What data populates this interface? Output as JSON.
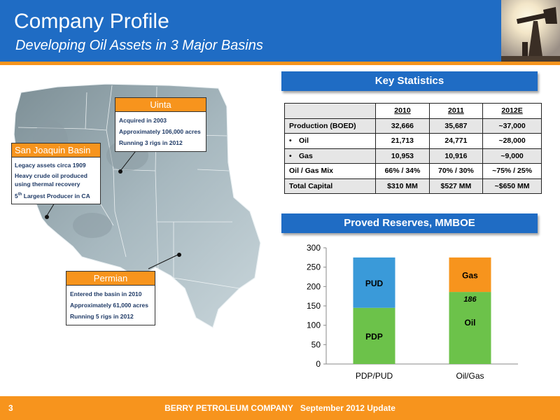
{
  "header": {
    "title": "Company Profile",
    "subtitle": "Developing Oil Assets in 3 Major Basins"
  },
  "callouts": {
    "uinta": {
      "name": "Uinta",
      "lines": [
        "Acquired in 2003",
        "Approximately 106,000 acres",
        "Running 3 rigs in 2012"
      ]
    },
    "san_joaquin": {
      "name": "San Joaquin Basin",
      "lines": [
        "Legacy assets circa 1909",
        "Heavy crude oil produced using thermal recovery"
      ],
      "rank": "5",
      "rank_sup": "th",
      "rank_text": " Largest Producer in CA"
    },
    "permian": {
      "name": "Permian",
      "lines": [
        "Entered the basin in 2010",
        "Approximately 61,000 acres",
        "Running 5 rigs in 2012"
      ]
    }
  },
  "key_stats": {
    "title": "Key Statistics",
    "columns": [
      "2010",
      "2011",
      "2012E"
    ],
    "rows": [
      {
        "label": "Production (BOED)",
        "bullet": "",
        "values": [
          "32,666",
          "35,687",
          "~37,000"
        ]
      },
      {
        "label": "Oil",
        "bullet": "•",
        "values": [
          "21,713",
          "24,771",
          "~28,000"
        ]
      },
      {
        "label": "Gas",
        "bullet": "•",
        "values": [
          "10,953",
          "10,916",
          "~9,000"
        ]
      },
      {
        "label": "Oil / Gas Mix",
        "bullet": "",
        "values": [
          "66% / 34%",
          "70% / 30%",
          "~75% / 25%"
        ]
      },
      {
        "label": "Total Capital",
        "bullet": "",
        "values": [
          "$310 MM",
          "$527 MM",
          "~$650 MM"
        ]
      }
    ]
  },
  "reserves": {
    "title": "Proved Reserves, MMBOE"
  },
  "chart_data": {
    "type": "bar",
    "stacked": true,
    "title": "",
    "xlabel": "",
    "ylabel": "",
    "ylim": [
      0,
      300
    ],
    "yticks": [
      0,
      50,
      100,
      150,
      200,
      250,
      300
    ],
    "grid": false,
    "legend": "none",
    "categories": [
      "PDP/PUD",
      "Oil/Gas"
    ],
    "bars": [
      {
        "category": "PDP/PUD",
        "segments": [
          {
            "name": "PDP",
            "value": 145,
            "color": "#6cc24a"
          },
          {
            "name": "PUD",
            "value": 130,
            "color": "#3a9ad9"
          }
        ]
      },
      {
        "category": "Oil/Gas",
        "segments": [
          {
            "name": "Oil",
            "value": 186,
            "color": "#6cc24a",
            "data_label": "186"
          },
          {
            "name": "Gas",
            "value": 89,
            "color": "#f7941d"
          }
        ]
      }
    ]
  },
  "footer": {
    "page": "3",
    "company": "BERRY PETROLEUM COMPANY",
    "date": "September 2012 Update"
  },
  "colors": {
    "brand_blue": "#1f6cc4",
    "brand_orange": "#f7941d"
  }
}
